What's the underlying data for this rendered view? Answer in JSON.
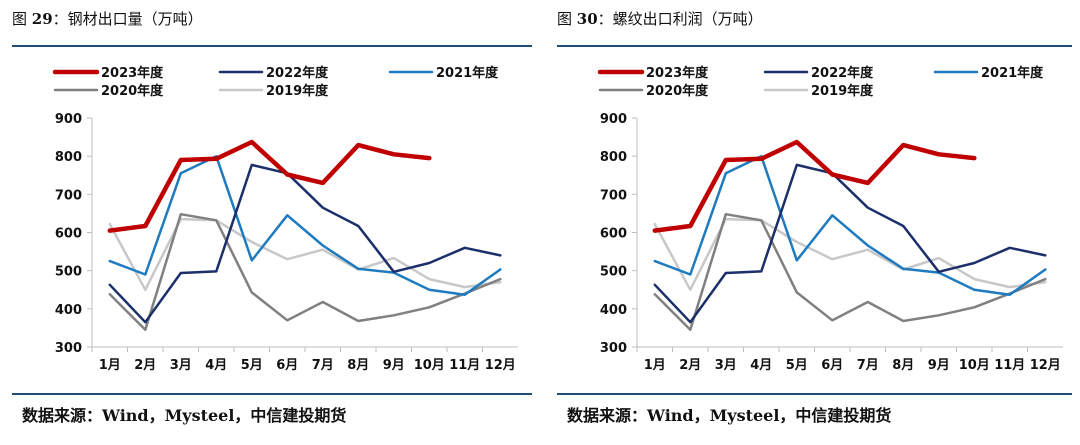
{
  "chart_data": [
    {
      "type": "line",
      "figure_label": "图 29：",
      "figure_number": "29",
      "figure_prefix": "图 ",
      "figure_suffix": "：",
      "title": "钢材出口量（万吨）",
      "source": "数据来源：Wind，Mysteel，中信建投期货",
      "categories": [
        "1月",
        "2月",
        "3月",
        "4月",
        "5月",
        "6月",
        "7月",
        "8月",
        "9月",
        "10月",
        "11月",
        "12月"
      ],
      "ylim": [
        300,
        900
      ],
      "yticks": [
        300,
        400,
        500,
        600,
        700,
        800,
        900
      ],
      "series": [
        {
          "name": "2023年度",
          "color": "#c00000",
          "width": 4.5,
          "values": [
            605,
            617,
            790,
            793,
            837,
            752,
            730,
            829,
            805,
            795,
            null,
            null
          ]
        },
        {
          "name": "2022年度",
          "color": "#1b2f6b",
          "width": 2.5,
          "values": [
            463,
            365,
            494,
            498,
            777,
            755,
            665,
            617,
            497,
            520,
            560,
            540
          ]
        },
        {
          "name": "2021年度",
          "color": "#1f7bbf",
          "width": 2.5,
          "values": [
            525,
            490,
            755,
            800,
            527,
            645,
            566,
            505,
            495,
            450,
            437,
            503
          ]
        },
        {
          "name": "2020年度",
          "color": "#808080",
          "width": 2.5,
          "values": [
            438,
            345,
            648,
            632,
            443,
            370,
            418,
            368,
            383,
            404,
            440,
            478
          ]
        },
        {
          "name": "2019年度",
          "color": "#c8c8c8",
          "width": 2.5,
          "values": [
            622,
            450,
            635,
            632,
            575,
            530,
            555,
            503,
            533,
            478,
            457,
            470
          ]
        }
      ]
    },
    {
      "type": "line",
      "figure_label": "图 30：",
      "figure_number": "30",
      "figure_prefix": "图 ",
      "figure_suffix": "：",
      "title": "螺纹出口利润（万吨）",
      "source": "数据来源：Wind，Mysteel，中信建投期货",
      "categories": [
        "1月",
        "2月",
        "3月",
        "4月",
        "5月",
        "6月",
        "7月",
        "8月",
        "9月",
        "10月",
        "11月",
        "12月"
      ],
      "ylim": [
        300,
        900
      ],
      "yticks": [
        300,
        400,
        500,
        600,
        700,
        800,
        900
      ],
      "series": [
        {
          "name": "2023年度",
          "color": "#c00000",
          "width": 4.5,
          "values": [
            605,
            617,
            790,
            793,
            837,
            752,
            730,
            829,
            805,
            795,
            null,
            null
          ]
        },
        {
          "name": "2022年度",
          "color": "#1b2f6b",
          "width": 2.5,
          "values": [
            463,
            365,
            494,
            498,
            777,
            755,
            665,
            617,
            497,
            520,
            560,
            540
          ]
        },
        {
          "name": "2021年度",
          "color": "#1f7bbf",
          "width": 2.5,
          "values": [
            525,
            490,
            755,
            800,
            527,
            645,
            566,
            505,
            495,
            450,
            437,
            503
          ]
        },
        {
          "name": "2020年度",
          "color": "#808080",
          "width": 2.5,
          "values": [
            438,
            345,
            648,
            632,
            443,
            370,
            418,
            368,
            383,
            404,
            440,
            478
          ]
        },
        {
          "name": "2019年度",
          "color": "#c8c8c8",
          "width": 2.5,
          "values": [
            622,
            450,
            635,
            632,
            575,
            530,
            555,
            503,
            533,
            478,
            457,
            470
          ]
        }
      ]
    }
  ]
}
